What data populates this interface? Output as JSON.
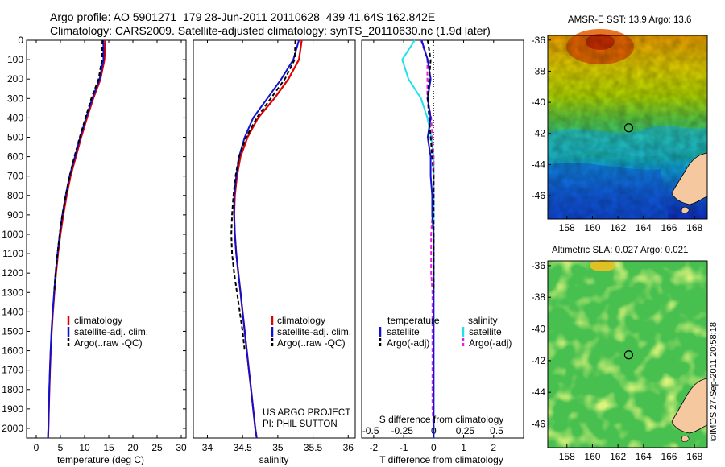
{
  "header": {
    "line1": "Argo profile: AO 5901271_179 28-Jun-2011 20110628_439 41.64S 162.842E",
    "line2": "Climatology: CARS2009. Satellite-adjusted climatology: synTS_20110630.nc (1.9d later)"
  },
  "project": {
    "line1": "US ARGO PROJECT",
    "line2": "PI: PHIL SUTTON"
  },
  "credit": "©IMOS 27-Sep-2011 20:58:18",
  "colors": {
    "climatology": "#e00000",
    "satellite": "#1010d0",
    "argo": "#000000",
    "sal_satellite": "#20e0f0",
    "sal_argo": "#e020e0"
  },
  "chart_data": [
    {
      "type": "line",
      "panel": "temperature",
      "xlabel": "temperature (deg C)",
      "ylabel": "",
      "xlim": [
        -2,
        31
      ],
      "ylim": [
        2050,
        0
      ],
      "xticks": [
        0,
        5,
        10,
        15,
        20,
        25,
        30
      ],
      "yticks": [
        0,
        100,
        200,
        300,
        400,
        500,
        600,
        700,
        800,
        900,
        1000,
        1100,
        1200,
        1300,
        1400,
        1500,
        1600,
        1700,
        1800,
        1900,
        2000
      ],
      "legend": {
        "position": "lower-left",
        "entries": [
          "climatology",
          "satellite-adj. clim.",
          "Argo(..raw -QC)"
        ]
      },
      "series": [
        {
          "name": "climatology",
          "x": [
            14.3,
            14.1,
            13.3,
            11.8,
            10.5,
            9.3,
            8.2,
            7.1,
            6.3,
            5.6,
            5.0,
            4.5,
            4.1,
            3.75,
            3.45,
            3.2,
            3.0,
            2.85,
            2.72,
            2.62,
            2.52,
            2.45
          ],
          "y": [
            0,
            100,
            200,
            300,
            400,
            500,
            600,
            700,
            800,
            900,
            1000,
            1100,
            1200,
            1300,
            1400,
            1500,
            1600,
            1700,
            1800,
            1900,
            2000,
            2050
          ]
        },
        {
          "name": "satellite-adj. clim.",
          "x": [
            13.9,
            13.9,
            13.1,
            11.6,
            10.3,
            9.1,
            8.0,
            6.9,
            6.1,
            5.4,
            4.85,
            4.4,
            4.0,
            3.7,
            3.4,
            3.15,
            2.97,
            2.82,
            2.7,
            2.6,
            2.5,
            2.43
          ],
          "y": [
            0,
            100,
            200,
            300,
            400,
            500,
            600,
            700,
            800,
            900,
            1000,
            1100,
            1200,
            1300,
            1400,
            1500,
            1600,
            1700,
            1800,
            1900,
            2000,
            2050
          ]
        },
        {
          "name": "Argo(..raw -QC)",
          "x": [
            13.7,
            13.6,
            12.9,
            11.4,
            10.2,
            9.0,
            7.9,
            6.9,
            6.1,
            5.4,
            4.85,
            4.4,
            4.0,
            3.7
          ],
          "y": [
            0,
            100,
            200,
            300,
            400,
            500,
            600,
            700,
            800,
            900,
            1000,
            1100,
            1200,
            1300
          ]
        }
      ]
    },
    {
      "type": "line",
      "panel": "salinity",
      "xlabel": "salinity",
      "ylabel": "",
      "xlim": [
        33.8,
        36.1
      ],
      "ylim": [
        2050,
        0
      ],
      "xticks": [
        34,
        34.5,
        35,
        35.5,
        36
      ],
      "legend": {
        "position": "lower-left",
        "entries": [
          "climatology",
          "satellite-adj. clim.",
          "Argo(..raw -QC)"
        ]
      },
      "series": [
        {
          "name": "climatology",
          "x": [
            35.34,
            35.3,
            35.15,
            34.95,
            34.72,
            34.57,
            34.47,
            34.42,
            34.39,
            34.38,
            34.39,
            34.41,
            34.44,
            34.47,
            34.5,
            34.53,
            34.56,
            34.59,
            34.62,
            34.65,
            34.68,
            34.7
          ],
          "y": [
            0,
            100,
            200,
            300,
            400,
            500,
            600,
            700,
            800,
            900,
            1000,
            1100,
            1200,
            1300,
            1400,
            1500,
            1600,
            1700,
            1800,
            1900,
            2000,
            2050
          ]
        },
        {
          "name": "satellite-adj. clim.",
          "x": [
            35.3,
            35.22,
            35.05,
            34.85,
            34.65,
            34.53,
            34.45,
            34.41,
            34.38,
            34.38,
            34.39,
            34.41,
            34.44,
            34.47,
            34.5,
            34.53,
            34.56,
            34.59,
            34.62,
            34.65,
            34.68,
            34.7
          ],
          "y": [
            0,
            100,
            200,
            300,
            400,
            500,
            600,
            700,
            800,
            900,
            1000,
            1100,
            1200,
            1300,
            1400,
            1500,
            1600,
            1700,
            1800,
            1900,
            2000,
            2050
          ]
        },
        {
          "name": "Argo(..raw -QC)",
          "x": [
            35.25,
            35.24,
            35.1,
            34.9,
            34.7,
            34.55,
            34.45,
            34.4,
            34.37,
            34.35,
            34.34,
            34.35,
            34.38,
            34.42,
            34.46,
            34.5,
            34.53
          ],
          "y": [
            0,
            100,
            200,
            300,
            400,
            500,
            600,
            700,
            800,
            900,
            1000,
            1100,
            1200,
            1300,
            1400,
            1500,
            1600
          ]
        }
      ]
    },
    {
      "type": "line",
      "panel": "differences",
      "xlabel": "T difference from climatology",
      "xlabel_top": "S difference from climatology",
      "xlim": [
        -2.4,
        3.0
      ],
      "ylim": [
        2050,
        0
      ],
      "xticks": [
        -2,
        -1,
        0,
        1,
        2
      ],
      "xticks_salinity": [
        -0.5,
        -0.25,
        0,
        0.25,
        0.5
      ],
      "legend": {
        "position": "lower-center",
        "groups": [
          {
            "title": "temperature",
            "entries": [
              "satellite",
              "Argo(-adj)"
            ]
          },
          {
            "title": "salinity",
            "entries": [
              "satellite",
              "Argo(-adj)"
            ]
          }
        ]
      },
      "series": [
        {
          "name": "temperature satellite",
          "x": [
            -0.4,
            -0.2,
            -0.1,
            -0.2,
            -0.1,
            -0.2,
            -0.1,
            -0.1,
            -0.05,
            -0.05,
            0,
            0,
            0,
            0,
            0,
            0,
            0,
            0,
            0,
            0,
            0,
            0
          ],
          "y": [
            0,
            100,
            200,
            300,
            400,
            500,
            600,
            700,
            800,
            900,
            1000,
            1100,
            1200,
            1300,
            1400,
            1500,
            1600,
            1700,
            1800,
            1900,
            2000,
            2050
          ]
        },
        {
          "name": "temperature Argo(-adj)",
          "x": [
            -0.2,
            -0.1,
            -0.15,
            -0.2,
            -0.15,
            -0.1,
            -0.05,
            0,
            0,
            0,
            0,
            0,
            0,
            0
          ],
          "y": [
            0,
            100,
            200,
            300,
            400,
            500,
            600,
            700,
            800,
            900,
            1000,
            1100,
            1200,
            1300
          ]
        },
        {
          "name": "salinity satellite",
          "x": [
            -0.15,
            -0.25,
            -0.2,
            -0.1,
            -0.05,
            -0.02,
            0,
            0,
            0,
            0,
            0,
            0,
            0,
            0,
            0,
            0,
            0,
            0,
            0,
            0,
            0,
            0
          ],
          "y": [
            0,
            100,
            200,
            300,
            400,
            500,
            600,
            700,
            800,
            900,
            1000,
            1100,
            1200,
            1300,
            1400,
            1500,
            1600,
            1700,
            1800,
            1900,
            2000,
            2050
          ]
        },
        {
          "name": "salinity Argo(-adj)",
          "x": [
            -0.1,
            -0.05,
            -0.05,
            -0.05,
            -0.02,
            -0.01,
            0,
            0,
            0,
            -0.01,
            -0.02,
            -0.02,
            -0.02,
            -0.01,
            -0.01,
            -0.01,
            -0.01,
            -0.01,
            -0.01,
            -0.01,
            0,
            0
          ],
          "y": [
            0,
            100,
            200,
            300,
            400,
            500,
            600,
            700,
            800,
            900,
            1000,
            1100,
            1200,
            1300,
            1400,
            1500,
            1600,
            1700,
            1800,
            1900,
            2000,
            2050
          ]
        }
      ]
    },
    {
      "type": "heatmap",
      "panel": "sst_map",
      "title": "AMSR-E SST: 13.9 Argo: 13.6",
      "xlim": [
        156.5,
        169
      ],
      "ylim": [
        -47.5,
        -35.7
      ],
      "xticks": [
        158,
        160,
        162,
        164,
        166,
        168
      ],
      "yticks": [
        -36,
        -38,
        -40,
        -42,
        -44,
        -46
      ],
      "marker": {
        "lon": 162.842,
        "lat": -41.64
      }
    },
    {
      "type": "heatmap",
      "panel": "sla_map",
      "title": "Altimetric SLA: 0.027 Argo: 0.021",
      "xlim": [
        156.5,
        169
      ],
      "ylim": [
        -47.5,
        -35.7
      ],
      "xticks": [
        158,
        160,
        162,
        164,
        166,
        168
      ],
      "yticks": [
        -36,
        -38,
        -40,
        -42,
        -44,
        -46
      ],
      "marker": {
        "lon": 162.842,
        "lat": -41.64
      }
    }
  ]
}
